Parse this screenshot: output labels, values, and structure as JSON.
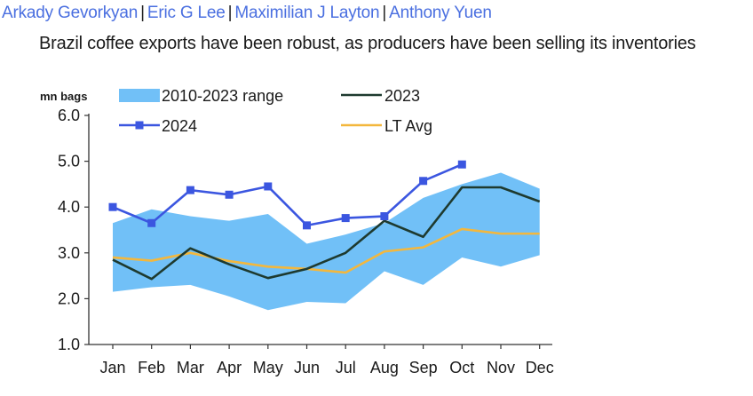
{
  "authors": [
    "Arkady Gevorkyan",
    "Eric G Lee",
    "Maximilian J Layton",
    "Anthony Yuen"
  ],
  "author_separator": "|",
  "subtitle": "Brazil coffee exports have been robust, as producers have been selling its inventories",
  "colors": {
    "author": "#4a6fe0",
    "range_fill": "#71c0f7",
    "series_2023": "#1e3a2f",
    "series_2024": "#3b56e0",
    "lt_avg": "#f3b73d",
    "axis": "#333333"
  },
  "chart_data": {
    "type": "line",
    "title": "",
    "ylabel": "mn bags",
    "xlabel": "",
    "ylim": [
      1.0,
      6.0
    ],
    "yticks": [
      "1.0",
      "2.0",
      "3.0",
      "4.0",
      "5.0",
      "6.0"
    ],
    "categories": [
      "Jan",
      "Feb",
      "Mar",
      "Apr",
      "May",
      "Jun",
      "Jul",
      "Aug",
      "Sep",
      "Oct",
      "Nov",
      "Dec"
    ],
    "range": {
      "name": "2010-2023 range",
      "low": [
        2.15,
        2.25,
        2.3,
        2.05,
        1.75,
        1.93,
        1.9,
        2.6,
        2.3,
        2.9,
        2.7,
        2.95
      ],
      "high": [
        3.65,
        3.95,
        3.8,
        3.7,
        3.85,
        3.2,
        3.4,
        3.65,
        4.2,
        4.5,
        4.75,
        4.4
      ]
    },
    "series": [
      {
        "name": "2023",
        "values": [
          2.85,
          2.43,
          3.1,
          2.75,
          2.45,
          2.65,
          3.0,
          3.7,
          3.35,
          4.43,
          4.43,
          4.12
        ]
      },
      {
        "name": "2024",
        "values": [
          4.0,
          3.65,
          4.37,
          4.27,
          4.45,
          3.6,
          3.76,
          3.8,
          4.57,
          4.93,
          null,
          null
        ]
      },
      {
        "name": "LT Avg",
        "values": [
          2.9,
          2.83,
          3.0,
          2.82,
          2.7,
          2.65,
          2.57,
          3.03,
          3.12,
          3.52,
          3.42,
          3.42
        ]
      }
    ],
    "legend": [
      "2010-2023 range",
      "2023",
      "2024",
      "LT Avg"
    ]
  }
}
